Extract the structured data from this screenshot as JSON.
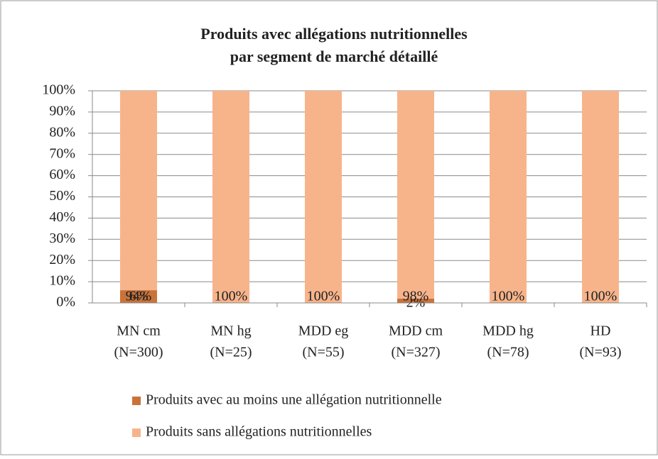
{
  "chart_data": {
    "type": "stacked_bar",
    "title": [
      "Produits avec allégations nutritionnelles",
      "par segment de marché détaillé"
    ],
    "categories": [
      [
        "MN cm",
        "(N=300)"
      ],
      [
        "MN hg",
        "(N=25)"
      ],
      [
        "MDD eg",
        "(N=55)"
      ],
      [
        "MDD cm",
        "(N=327)"
      ],
      [
        "MDD hg",
        "(N=78)"
      ],
      [
        "HD",
        "(N=93)"
      ]
    ],
    "series": [
      {
        "name": "Produits avec au moins une allégation nutritionnelle",
        "color": "#c9733a",
        "values": [
          6,
          0,
          0,
          2,
          0,
          0
        ],
        "value_labels": [
          "6%",
          null,
          null,
          "2%",
          null,
          null
        ]
      },
      {
        "name": "Produits sans allégations nutritionnelles",
        "color": "#f7b48b",
        "values": [
          94,
          100,
          100,
          98,
          100,
          100
        ],
        "value_labels": [
          "94%",
          "100%",
          "100%",
          "98%",
          "100%",
          "100%"
        ]
      }
    ],
    "ylim": [
      0,
      100
    ],
    "yticks": [
      {
        "value": 0,
        "label": "0%"
      },
      {
        "value": 10,
        "label": "10%"
      },
      {
        "value": 20,
        "label": "20%"
      },
      {
        "value": 30,
        "label": "30%"
      },
      {
        "value": 40,
        "label": "40%"
      },
      {
        "value": 50,
        "label": "50%"
      },
      {
        "value": 60,
        "label": "60%"
      },
      {
        "value": 70,
        "label": "70%"
      },
      {
        "value": 80,
        "label": "80%"
      },
      {
        "value": 90,
        "label": "90%"
      },
      {
        "value": 100,
        "label": "100%"
      }
    ],
    "grid": true,
    "legend": "bottom"
  }
}
